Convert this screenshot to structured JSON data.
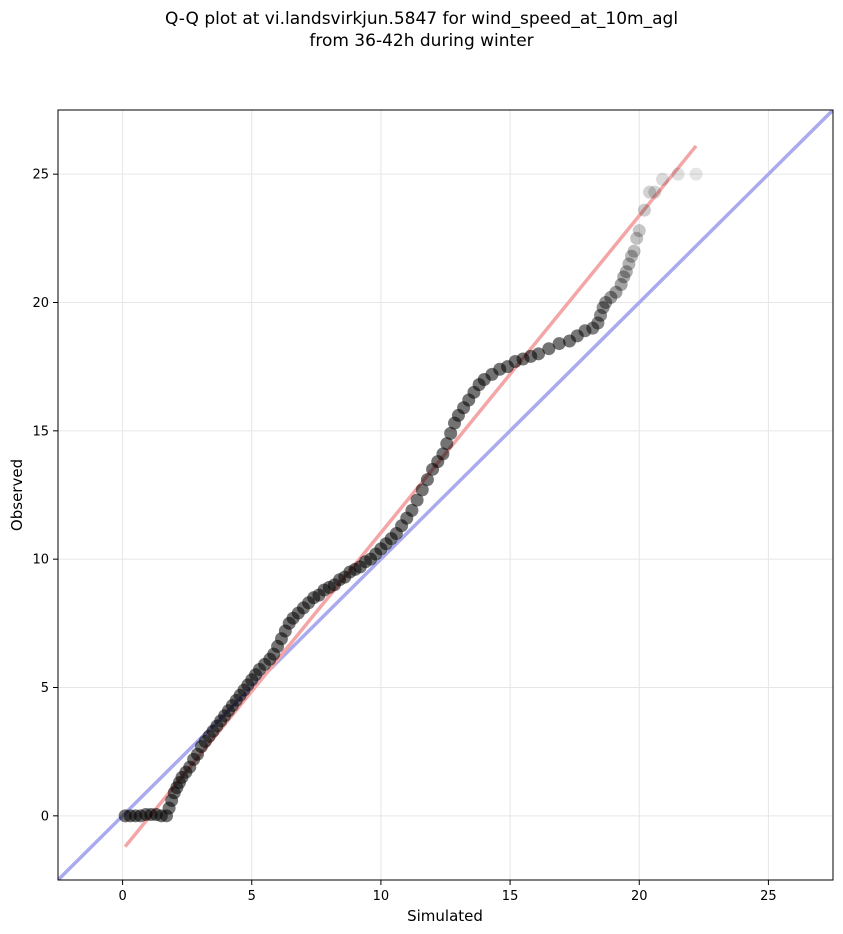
{
  "chart_data": {
    "type": "scatter",
    "title_line1": "Q-Q plot at vi.landsvirkjun.5847 for wind_speed_at_10m_agl",
    "title_line2": "from 36-42h during winter",
    "xlabel": "Simulated",
    "ylabel": "Observed",
    "xlim": [
      -2.5,
      27.5
    ],
    "ylim": [
      -2.5,
      27.5
    ],
    "xticks": [
      0,
      5,
      10,
      15,
      20,
      25
    ],
    "yticks": [
      0,
      5,
      10,
      15,
      20,
      25
    ],
    "grid": true,
    "reference_line": {
      "name": "1:1",
      "color": "#aaaaee",
      "x": [
        -2.5,
        27.5
      ],
      "y": [
        -2.5,
        27.5
      ]
    },
    "fit_line": {
      "name": "fit",
      "color": "#f4a6a6",
      "x": [
        0.1,
        22.2
      ],
      "y": [
        -1.2,
        26.1
      ]
    },
    "points_color": "#000000",
    "points": [
      [
        0.1,
        0.0
      ],
      [
        0.3,
        0.0
      ],
      [
        0.5,
        0.0
      ],
      [
        0.7,
        0.0
      ],
      [
        0.9,
        0.05
      ],
      [
        1.1,
        0.05
      ],
      [
        1.3,
        0.05
      ],
      [
        1.5,
        0.0
      ],
      [
        1.7,
        0.0
      ],
      [
        1.8,
        0.3
      ],
      [
        1.9,
        0.6
      ],
      [
        2.0,
        0.9
      ],
      [
        2.1,
        1.1
      ],
      [
        2.2,
        1.3
      ],
      [
        2.3,
        1.5
      ],
      [
        2.45,
        1.7
      ],
      [
        2.6,
        1.9
      ],
      [
        2.75,
        2.2
      ],
      [
        2.9,
        2.4
      ],
      [
        3.05,
        2.7
      ],
      [
        3.2,
        2.9
      ],
      [
        3.35,
        3.1
      ],
      [
        3.5,
        3.3
      ],
      [
        3.65,
        3.5
      ],
      [
        3.8,
        3.7
      ],
      [
        3.95,
        3.9
      ],
      [
        4.1,
        4.1
      ],
      [
        4.25,
        4.3
      ],
      [
        4.4,
        4.5
      ],
      [
        4.55,
        4.7
      ],
      [
        4.7,
        4.9
      ],
      [
        4.85,
        5.1
      ],
      [
        5.0,
        5.3
      ],
      [
        5.15,
        5.5
      ],
      [
        5.3,
        5.7
      ],
      [
        5.5,
        5.9
      ],
      [
        5.7,
        6.1
      ],
      [
        5.85,
        6.3
      ],
      [
        6.0,
        6.6
      ],
      [
        6.15,
        6.9
      ],
      [
        6.3,
        7.2
      ],
      [
        6.45,
        7.5
      ],
      [
        6.6,
        7.7
      ],
      [
        6.8,
        7.9
      ],
      [
        7.0,
        8.1
      ],
      [
        7.2,
        8.3
      ],
      [
        7.4,
        8.5
      ],
      [
        7.6,
        8.6
      ],
      [
        7.8,
        8.8
      ],
      [
        8.0,
        8.9
      ],
      [
        8.2,
        9.0
      ],
      [
        8.4,
        9.2
      ],
      [
        8.6,
        9.3
      ],
      [
        8.8,
        9.5
      ],
      [
        9.0,
        9.6
      ],
      [
        9.2,
        9.7
      ],
      [
        9.4,
        9.9
      ],
      [
        9.6,
        10.0
      ],
      [
        9.8,
        10.2
      ],
      [
        10.0,
        10.4
      ],
      [
        10.2,
        10.6
      ],
      [
        10.4,
        10.8
      ],
      [
        10.6,
        11.0
      ],
      [
        10.8,
        11.3
      ],
      [
        11.0,
        11.6
      ],
      [
        11.2,
        11.9
      ],
      [
        11.4,
        12.3
      ],
      [
        11.6,
        12.7
      ],
      [
        11.8,
        13.1
      ],
      [
        12.0,
        13.5
      ],
      [
        12.2,
        13.8
      ],
      [
        12.4,
        14.1
      ],
      [
        12.55,
        14.5
      ],
      [
        12.7,
        14.9
      ],
      [
        12.85,
        15.3
      ],
      [
        13.0,
        15.6
      ],
      [
        13.2,
        15.9
      ],
      [
        13.4,
        16.2
      ],
      [
        13.6,
        16.5
      ],
      [
        13.8,
        16.8
      ],
      [
        14.0,
        17.0
      ],
      [
        14.3,
        17.2
      ],
      [
        14.6,
        17.4
      ],
      [
        14.9,
        17.5
      ],
      [
        15.2,
        17.7
      ],
      [
        15.5,
        17.8
      ],
      [
        15.8,
        17.9
      ],
      [
        16.1,
        18.0
      ],
      [
        16.5,
        18.2
      ],
      [
        16.9,
        18.4
      ],
      [
        17.3,
        18.5
      ],
      [
        17.6,
        18.7
      ],
      [
        17.9,
        18.9
      ],
      [
        18.2,
        19.0
      ],
      [
        18.4,
        19.2
      ],
      [
        18.5,
        19.5
      ],
      [
        18.6,
        19.8
      ],
      [
        18.7,
        20.0
      ],
      [
        18.9,
        20.2
      ],
      [
        19.1,
        20.4
      ],
      [
        19.3,
        20.7
      ],
      [
        19.4,
        21.0
      ],
      [
        19.5,
        21.2
      ],
      [
        19.6,
        21.5
      ],
      [
        19.7,
        21.8
      ],
      [
        19.8,
        22.0
      ],
      [
        19.9,
        22.5
      ],
      [
        20.0,
        22.8
      ],
      [
        20.2,
        23.6
      ],
      [
        20.4,
        24.3
      ],
      [
        20.6,
        24.3
      ],
      [
        20.9,
        24.8
      ],
      [
        21.5,
        25.0
      ],
      [
        22.2,
        25.0
      ]
    ]
  }
}
